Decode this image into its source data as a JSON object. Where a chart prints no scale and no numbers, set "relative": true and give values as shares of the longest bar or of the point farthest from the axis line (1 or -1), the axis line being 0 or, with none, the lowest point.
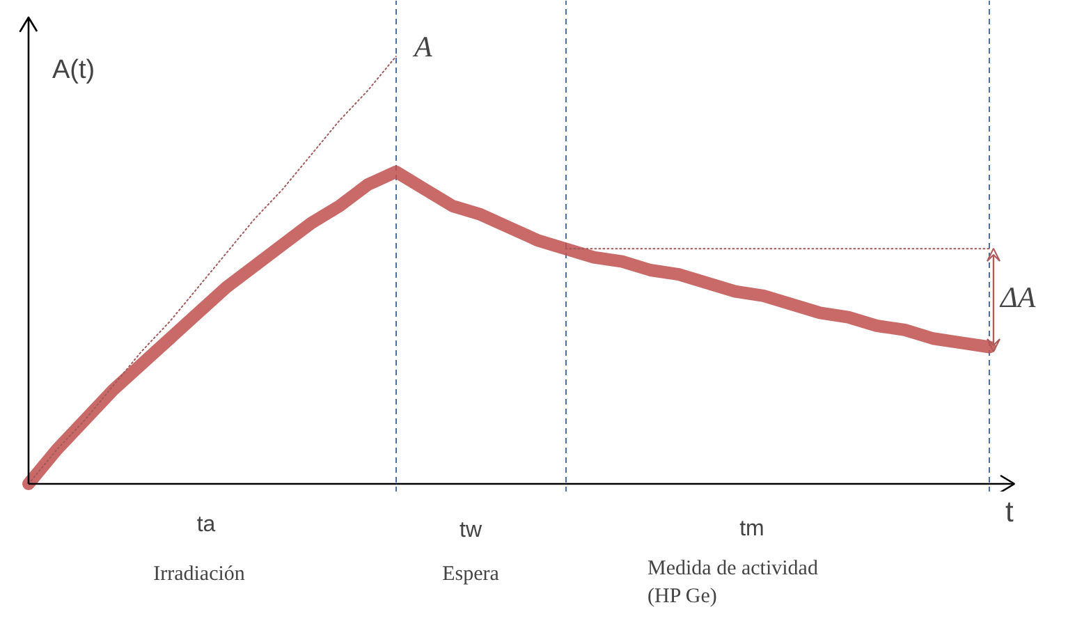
{
  "chart_data": {
    "type": "line",
    "relative": true,
    "grid": "x",
    "ylabel": "A(t)",
    "xlabel": "t",
    "categories": [
      null,
      null,
      null,
      null,
      null,
      null,
      null,
      null,
      null,
      null,
      null,
      null,
      null,
      null,
      null,
      null,
      null,
      null,
      null,
      null,
      null,
      null,
      null,
      null,
      null,
      null,
      null,
      null,
      null,
      null,
      null,
      null,
      null,
      null,
      null
    ],
    "series": [
      {
        "color": "#c0504d",
        "line_style": "solid",
        "values": [
          0,
          0.08,
          0.15,
          0.22,
          0.28,
          0.34,
          0.4,
          0.46,
          0.51,
          0.56,
          0.61,
          0.65,
          0.7,
          0.73,
          0.69,
          0.65,
          0.63,
          0.6,
          0.57,
          0.55,
          0.53,
          0.52,
          0.5,
          0.49,
          0.47,
          0.45,
          0.44,
          0.42,
          0.4,
          0.39,
          0.37,
          0.36,
          0.34,
          0.33,
          0.32
        ]
      },
      {
        "color": "#a05a5a",
        "line_style": "dotted",
        "values": [
          0,
          0.08,
          0.15,
          0.23,
          0.31,
          0.38,
          0.46,
          0.54,
          0.62,
          0.69,
          0.77,
          0.85,
          0.92,
          1,
          null,
          null,
          null,
          null,
          null,
          null,
          null,
          null,
          null,
          null,
          null,
          null,
          null,
          null,
          null,
          null,
          null,
          null,
          null,
          null,
          null
        ]
      },
      {
        "color": "#a05a5a",
        "line_style": "dotted",
        "values": [
          null,
          null,
          null,
          null,
          null,
          null,
          null,
          null,
          null,
          null,
          null,
          null,
          null,
          null,
          null,
          null,
          null,
          null,
          null,
          0.55,
          0.55,
          0.55,
          0.55,
          0.55,
          0.55,
          0.55,
          0.55,
          0.55,
          0.55,
          0.55,
          0.55,
          0.55,
          0.55,
          0.55,
          0.55
        ]
      }
    ],
    "annotations": [
      "A",
      "ΔA",
      "ta",
      "tw",
      "tm",
      "Irradiación",
      "Espera",
      "Medida de actividad\n(HP Ge)"
    ]
  }
}
